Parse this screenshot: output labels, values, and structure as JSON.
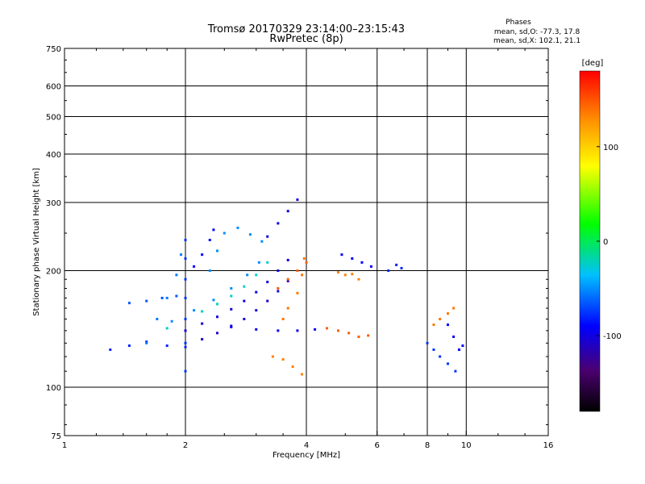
{
  "chart_data": {
    "type": "scatter",
    "title": "Tromsø 20170329 23:14:00–23:15:43",
    "subtitle": "RwPretec (8p)",
    "phases": {
      "heading": "Phases",
      "line_o": "mean, sd,O: -77.3, 17.8",
      "line_x": "mean, sd,X: 102.1, 21.1"
    },
    "xlabel": "Frequency [MHz]",
    "ylabel": "Stationary phase Virtual Height [km]",
    "x_scale": "log",
    "y_scale": "log",
    "xlim": [
      1,
      16
    ],
    "ylim": [
      75,
      750
    ],
    "x_ticks": [
      1,
      2,
      4,
      6,
      8,
      10,
      16
    ],
    "x_tick_labels": [
      "1",
      "2",
      "4",
      "6",
      "8",
      "10",
      "16"
    ],
    "y_ticks": [
      75,
      100,
      200,
      300,
      400,
      500,
      600,
      750
    ],
    "y_tick_labels": [
      "75",
      "100",
      "200",
      "300",
      "400",
      "500",
      "600",
      "750"
    ],
    "grid": true,
    "colorbar": {
      "label": "[deg]",
      "range": [
        -180,
        180
      ],
      "ticks": [
        100,
        0,
        -100
      ],
      "tick_labels": [
        "100",
        "0",
        "-100"
      ]
    },
    "series": [
      {
        "traces": [
          {
            "c": -115,
            "pts": [
              [
                2.0,
                130
              ],
              [
                2.2,
                133
              ],
              [
                2.4,
                138
              ],
              [
                2.6,
                144
              ],
              [
                2.8,
                150
              ],
              [
                3.0,
                158
              ],
              [
                3.2,
                167
              ],
              [
                3.4,
                177
              ],
              [
                3.6,
                188
              ]
            ]
          },
          {
            "c": -110,
            "pts": [
              [
                2.0,
                140
              ],
              [
                2.2,
                146
              ],
              [
                2.4,
                152
              ],
              [
                2.6,
                159
              ],
              [
                2.8,
                167
              ],
              [
                3.0,
                176
              ],
              [
                3.2,
                187
              ],
              [
                3.4,
                200
              ],
              [
                3.6,
                213
              ]
            ]
          },
          {
            "c": -35,
            "pts": [
              [
                1.8,
                142
              ],
              [
                2.0,
                150
              ],
              [
                2.2,
                157
              ],
              [
                2.4,
                164
              ],
              [
                2.6,
                172
              ],
              [
                2.8,
                182
              ],
              [
                3.0,
                195
              ],
              [
                3.2,
                210
              ]
            ]
          },
          {
            "c": -60,
            "pts": [
              [
                1.85,
                148
              ],
              [
                2.1,
                158
              ],
              [
                2.35,
                168
              ],
              [
                2.6,
                180
              ],
              [
                2.85,
                195
              ],
              [
                3.05,
                210
              ]
            ]
          },
          {
            "c": -105,
            "pts": [
              [
                2.6,
                143
              ],
              [
                3.0,
                141
              ],
              [
                3.4,
                140
              ],
              [
                3.8,
                140
              ],
              [
                4.2,
                141
              ]
            ]
          },
          {
            "c": -110,
            "pts": [
              [
                3.2,
                245
              ],
              [
                3.4,
                265
              ],
              [
                3.6,
                285
              ],
              [
                3.8,
                305
              ]
            ]
          },
          {
            "c": -90,
            "pts": [
              [
                1.3,
                125
              ],
              [
                1.45,
                128
              ],
              [
                1.6,
                131
              ],
              [
                1.8,
                128
              ],
              [
                2.0,
                127
              ]
            ]
          },
          {
            "c": -75,
            "pts": [
              [
                1.45,
                165
              ],
              [
                1.6,
                167
              ],
              [
                1.75,
                170
              ],
              [
                1.9,
                172
              ]
            ]
          },
          {
            "c": -85,
            "pts": [
              [
                2.0,
                110
              ],
              [
                2.0,
                130
              ],
              [
                2.0,
                150
              ],
              [
                2.0,
                170
              ],
              [
                2.0,
                190
              ],
              [
                2.0,
                215
              ],
              [
                2.0,
                240
              ]
            ]
          },
          {
            "c": -65,
            "pts": [
              [
                1.6,
                130
              ],
              [
                1.7,
                150
              ],
              [
                1.8,
                170
              ],
              [
                1.9,
                195
              ],
              [
                1.95,
                220
              ]
            ]
          },
          {
            "c": -60,
            "pts": [
              [
                2.3,
                200
              ],
              [
                2.4,
                225
              ],
              [
                2.5,
                250
              ],
              [
                2.7,
                258
              ],
              [
                2.9,
                248
              ],
              [
                3.1,
                238
              ]
            ]
          },
          {
            "c": -100,
            "pts": [
              [
                2.1,
                205
              ],
              [
                2.2,
                220
              ],
              [
                2.3,
                240
              ],
              [
                2.35,
                255
              ]
            ]
          },
          {
            "c": 130,
            "pts": [
              [
                3.5,
                150
              ],
              [
                3.6,
                160
              ],
              [
                3.8,
                175
              ],
              [
                3.9,
                195
              ],
              [
                3.95,
                215
              ]
            ]
          },
          {
            "c": 140,
            "pts": [
              [
                3.4,
                180
              ],
              [
                3.6,
                190
              ],
              [
                3.8,
                200
              ],
              [
                4.0,
                210
              ]
            ]
          },
          {
            "c": 125,
            "pts": [
              [
                3.3,
                120
              ],
              [
                3.5,
                118
              ],
              [
                3.7,
                113
              ],
              [
                3.9,
                108
              ]
            ]
          },
          {
            "c": 140,
            "pts": [
              [
                4.5,
                142
              ],
              [
                4.8,
                140
              ],
              [
                5.1,
                138
              ],
              [
                5.4,
                135
              ],
              [
                5.7,
                136
              ]
            ]
          },
          {
            "c": 125,
            "pts": [
              [
                4.8,
                198
              ],
              [
                5.0,
                195
              ],
              [
                5.2,
                196
              ],
              [
                5.4,
                190
              ]
            ]
          },
          {
            "c": -100,
            "pts": [
              [
                4.9,
                220
              ],
              [
                5.2,
                215
              ],
              [
                5.5,
                210
              ],
              [
                5.8,
                205
              ]
            ]
          },
          {
            "c": -90,
            "pts": [
              [
                6.4,
                200
              ],
              [
                6.7,
                207
              ],
              [
                6.9,
                203
              ]
            ]
          },
          {
            "c": -85,
            "pts": [
              [
                8.0,
                130
              ],
              [
                8.3,
                125
              ],
              [
                8.6,
                120
              ],
              [
                9.0,
                115
              ],
              [
                9.4,
                110
              ]
            ]
          },
          {
            "c": 130,
            "pts": [
              [
                8.3,
                145
              ],
              [
                8.6,
                150
              ],
              [
                9.0,
                155
              ],
              [
                9.3,
                160
              ]
            ]
          },
          {
            "c": -100,
            "pts": [
              [
                9.0,
                145
              ],
              [
                9.3,
                135
              ],
              [
                9.6,
                125
              ],
              [
                9.8,
                128
              ]
            ]
          }
        ]
      }
    ]
  }
}
